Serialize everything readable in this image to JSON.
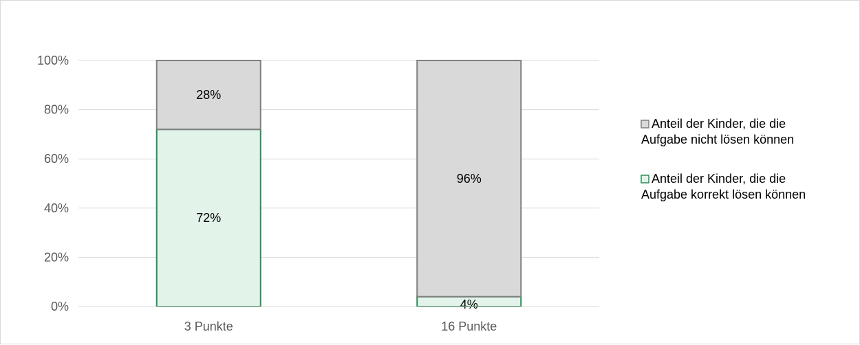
{
  "chart_data": {
    "type": "bar",
    "stacked": true,
    "categories": [
      "3 Punkte",
      "16 Punkte"
    ],
    "series": [
      {
        "name": "Anteil der Kinder, die die Aufgabe korrekt lösen können",
        "values": [
          72,
          4
        ],
        "labels": [
          "72%",
          "4%"
        ],
        "fill": "#e2f3ea",
        "stroke": "#2e8b57"
      },
      {
        "name": "Anteil der Kinder, die die Aufgabe nicht lösen können",
        "values": [
          28,
          96
        ],
        "labels": [
          "28%",
          "96%"
        ],
        "fill": "#d9d9d9",
        "stroke": "#7f7f7f"
      }
    ],
    "y_ticks": [
      "0%",
      "20%",
      "40%",
      "60%",
      "80%",
      "100%"
    ],
    "ylim": [
      0,
      100
    ],
    "grid": true,
    "legend_position": "right",
    "legend_order": [
      1,
      0
    ],
    "title": "",
    "xlabel": "",
    "ylabel": ""
  }
}
